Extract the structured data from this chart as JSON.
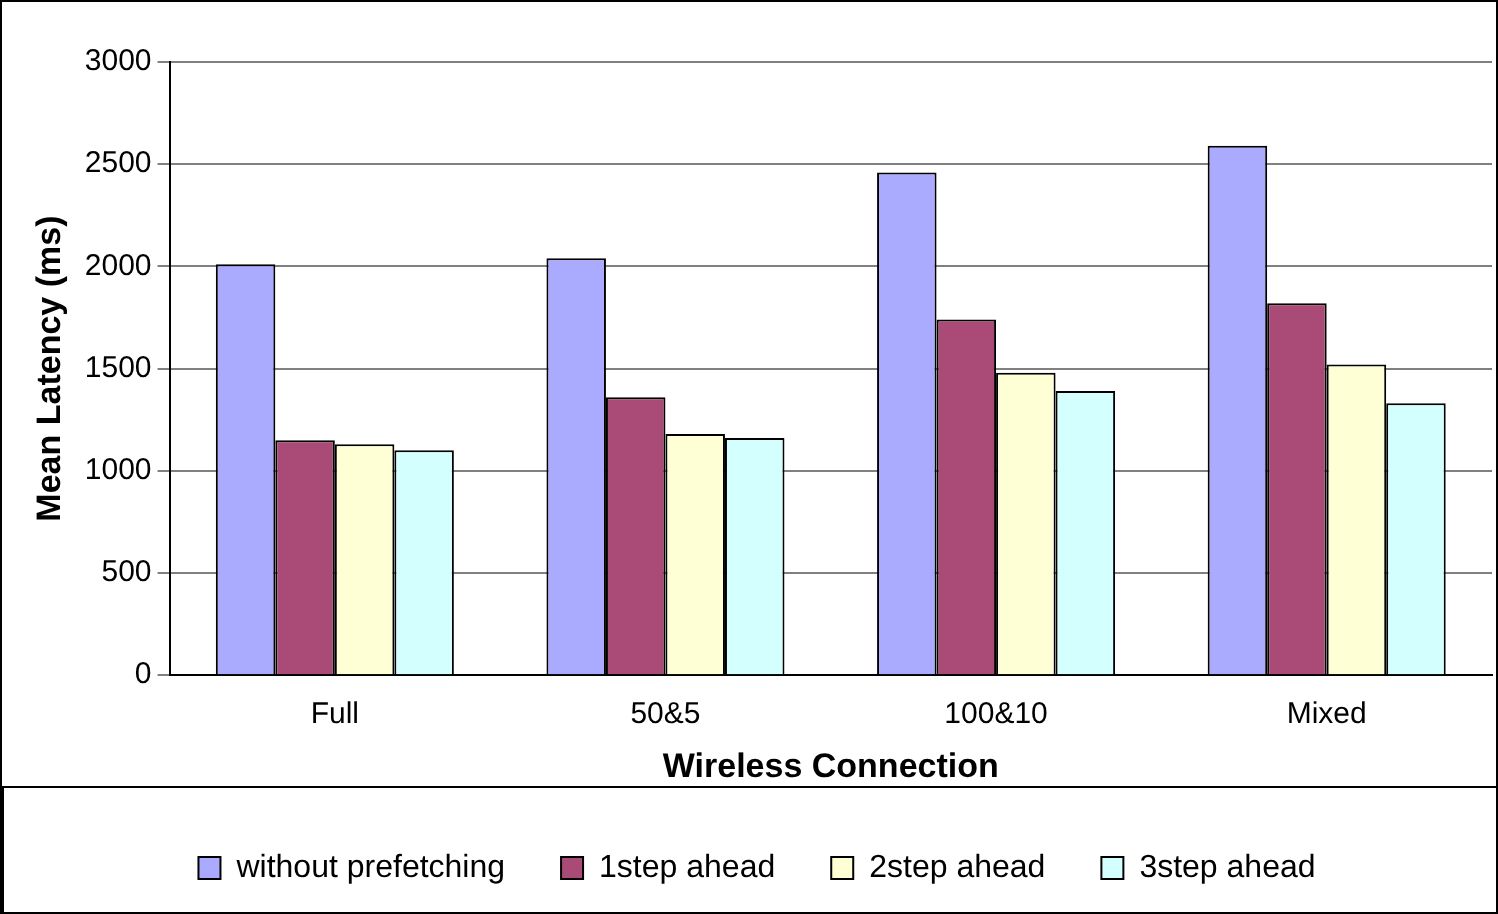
{
  "chart_data": {
    "type": "bar",
    "xlabel": "Wireless Connection",
    "ylabel": "Mean Latency (ms)",
    "categories": [
      "Full",
      "50&5",
      "100&10",
      "Mixed"
    ],
    "series": [
      {
        "name": "without prefetching",
        "color": "#aaaaff",
        "values": [
          2010,
          2040,
          2460,
          2590
        ]
      },
      {
        "name": "1step ahead",
        "color": "#aa4a76",
        "values": [
          1150,
          1360,
          1740,
          1820
        ]
      },
      {
        "name": "2step ahead",
        "color": "#ffffd5",
        "values": [
          1130,
          1180,
          1480,
          1520
        ]
      },
      {
        "name": "3step ahead",
        "color": "#d4ffff",
        "values": [
          1100,
          1160,
          1390,
          1330
        ]
      }
    ],
    "ylim": [
      0,
      3000
    ],
    "yticks": [
      0,
      500,
      1000,
      1500,
      2000,
      2500,
      3000
    ],
    "grid": "y",
    "legend": "bottom"
  }
}
